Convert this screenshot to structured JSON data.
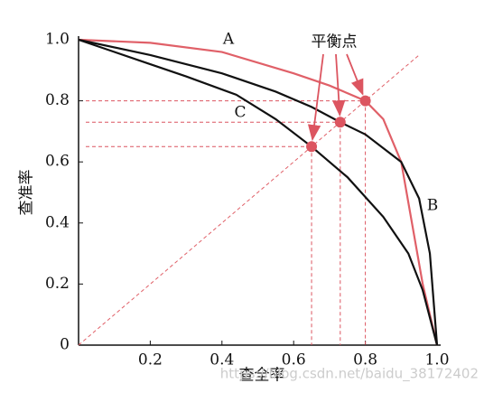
{
  "chart_data": {
    "type": "line",
    "x_label": "查全率",
    "y_label": "查准率",
    "xlim": [
      0,
      1
    ],
    "ylim": [
      0,
      1
    ],
    "xticks": [
      0.2,
      0.4,
      0.6,
      0.8,
      {
        "value": 1,
        "label": "1.0"
      }
    ],
    "yticks": [
      0,
      0.2,
      0.4,
      0.6,
      0.8,
      {
        "value": 1,
        "label": "1.0"
      }
    ],
    "series": [
      {
        "label": "A",
        "color": "#e06068",
        "x": [
          0,
          0.2,
          0.4,
          0.6,
          0.7,
          0.8,
          0.85,
          0.9,
          0.93,
          0.96,
          1.0
        ],
        "values": [
          1.0,
          0.99,
          0.96,
          0.89,
          0.85,
          0.8,
          0.74,
          0.6,
          0.4,
          0.2,
          0
        ]
      },
      {
        "label": "B",
        "color": "#111111",
        "x": [
          0,
          0.2,
          0.4,
          0.55,
          0.65,
          0.73,
          0.8,
          0.9,
          0.95,
          0.98,
          1.0
        ],
        "values": [
          1.0,
          0.95,
          0.89,
          0.83,
          0.78,
          0.73,
          0.69,
          0.6,
          0.48,
          0.3,
          0
        ]
      },
      {
        "label": "C",
        "color": "#111111",
        "x": [
          0,
          0.1,
          0.2,
          0.3,
          0.44,
          0.55,
          0.65,
          0.75,
          0.85,
          0.92,
          0.96,
          1.0
        ],
        "values": [
          1.0,
          0.96,
          0.92,
          0.88,
          0.82,
          0.74,
          0.65,
          0.55,
          0.42,
          0.3,
          0.18,
          0
        ]
      }
    ],
    "reference_line": {
      "color": "#e06068",
      "x": [
        0,
        0.95
      ],
      "values": [
        0,
        0.95
      ]
    },
    "break_even_points": {
      "label": "平衡点",
      "color": "#dc5560",
      "x": [
        0.65,
        0.73,
        0.8
      ],
      "values": [
        0.65,
        0.73,
        0.8
      ]
    },
    "watermark": "https://blog.csdn.net/baidu_38172402"
  }
}
